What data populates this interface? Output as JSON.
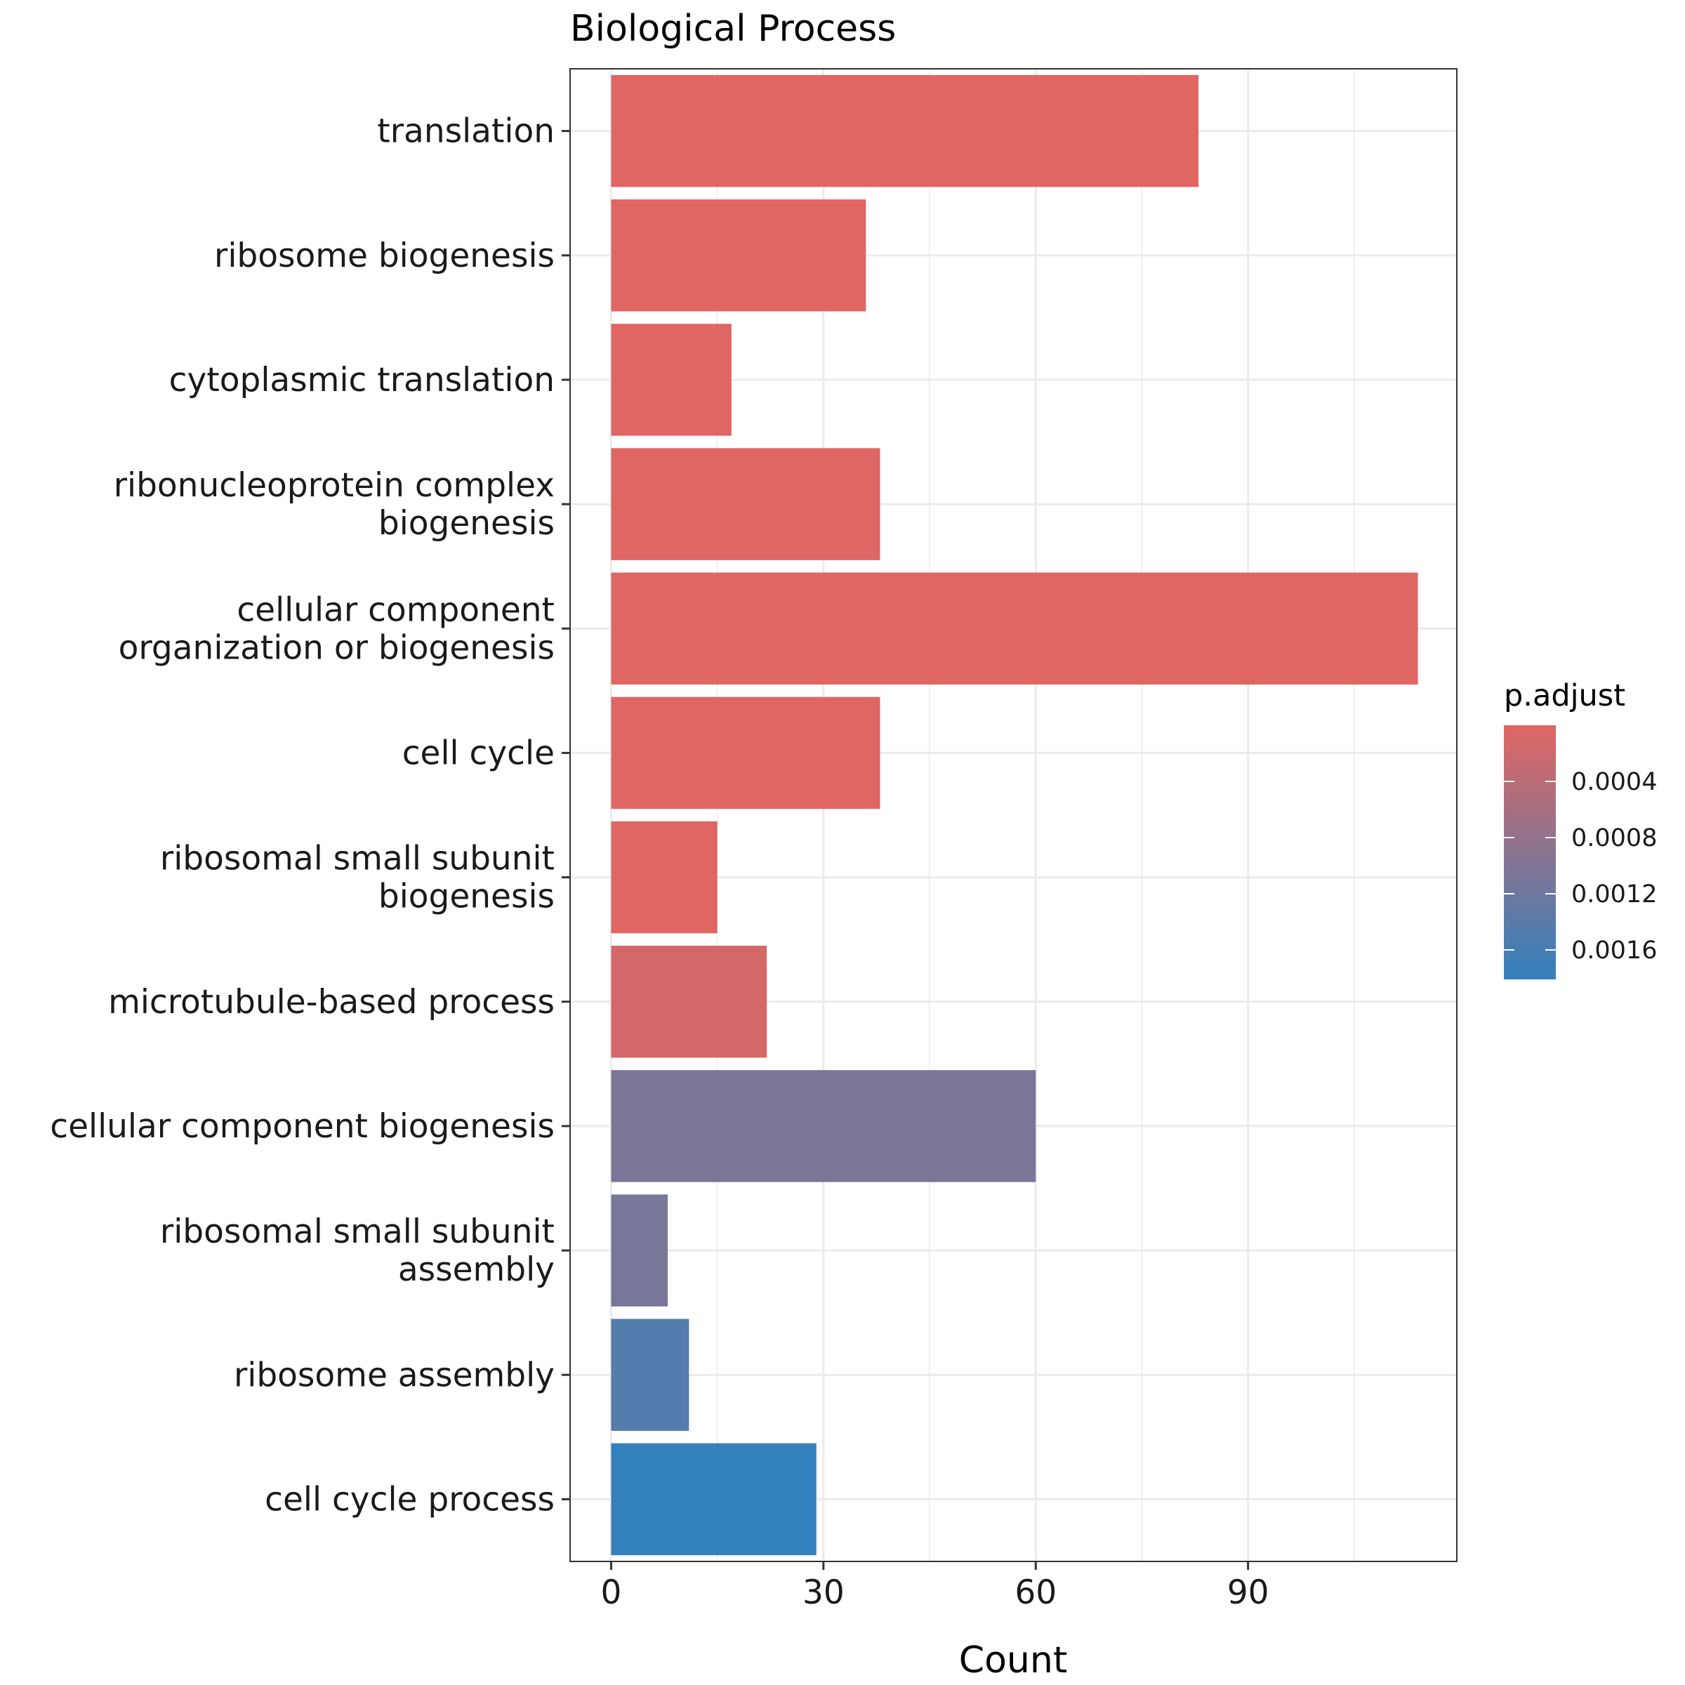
{
  "chart_data": {
    "type": "bar",
    "orientation": "horizontal",
    "title": "Biological Process",
    "xlabel": "Count",
    "ylabel": "",
    "xlim": [
      -5.8,
      119.5
    ],
    "xticks": [
      0,
      30,
      60,
      90
    ],
    "categories": [
      [
        "translation"
      ],
      [
        "ribosome biogenesis"
      ],
      [
        "cytoplasmic translation"
      ],
      [
        "ribonucleoprotein complex",
        "biogenesis"
      ],
      [
        "cellular component",
        "organization or biogenesis"
      ],
      [
        "cell cycle"
      ],
      [
        "ribosomal small subunit",
        "biogenesis"
      ],
      [
        "microtubule-based process"
      ],
      [
        "cellular component biogenesis"
      ],
      [
        "ribosomal small subunit",
        "assembly"
      ],
      [
        "ribosome assembly"
      ],
      [
        "cell cycle process"
      ]
    ],
    "values": [
      83,
      36,
      17,
      38,
      114,
      38,
      15,
      22,
      60,
      8,
      11,
      29
    ],
    "p_adjust": [
      1e-08,
      6e-08,
      2e-07,
      4e-07,
      5e-07,
      8e-07,
      2e-06,
      0.00013,
      0.00107,
      0.00109,
      0.00146,
      0.00181
    ],
    "legend": {
      "title": "p.adjust",
      "placement": "right",
      "ticks": [
        "0.0004",
        "0.0008",
        "0.0012",
        "0.0016"
      ],
      "tick_values": [
        0.0004,
        0.0008,
        0.0012,
        0.0016
      ],
      "range": [
        1e-08,
        0.00181
      ],
      "color_low": "#e06663",
      "color_high": "#3381bd"
    },
    "grid": true
  }
}
